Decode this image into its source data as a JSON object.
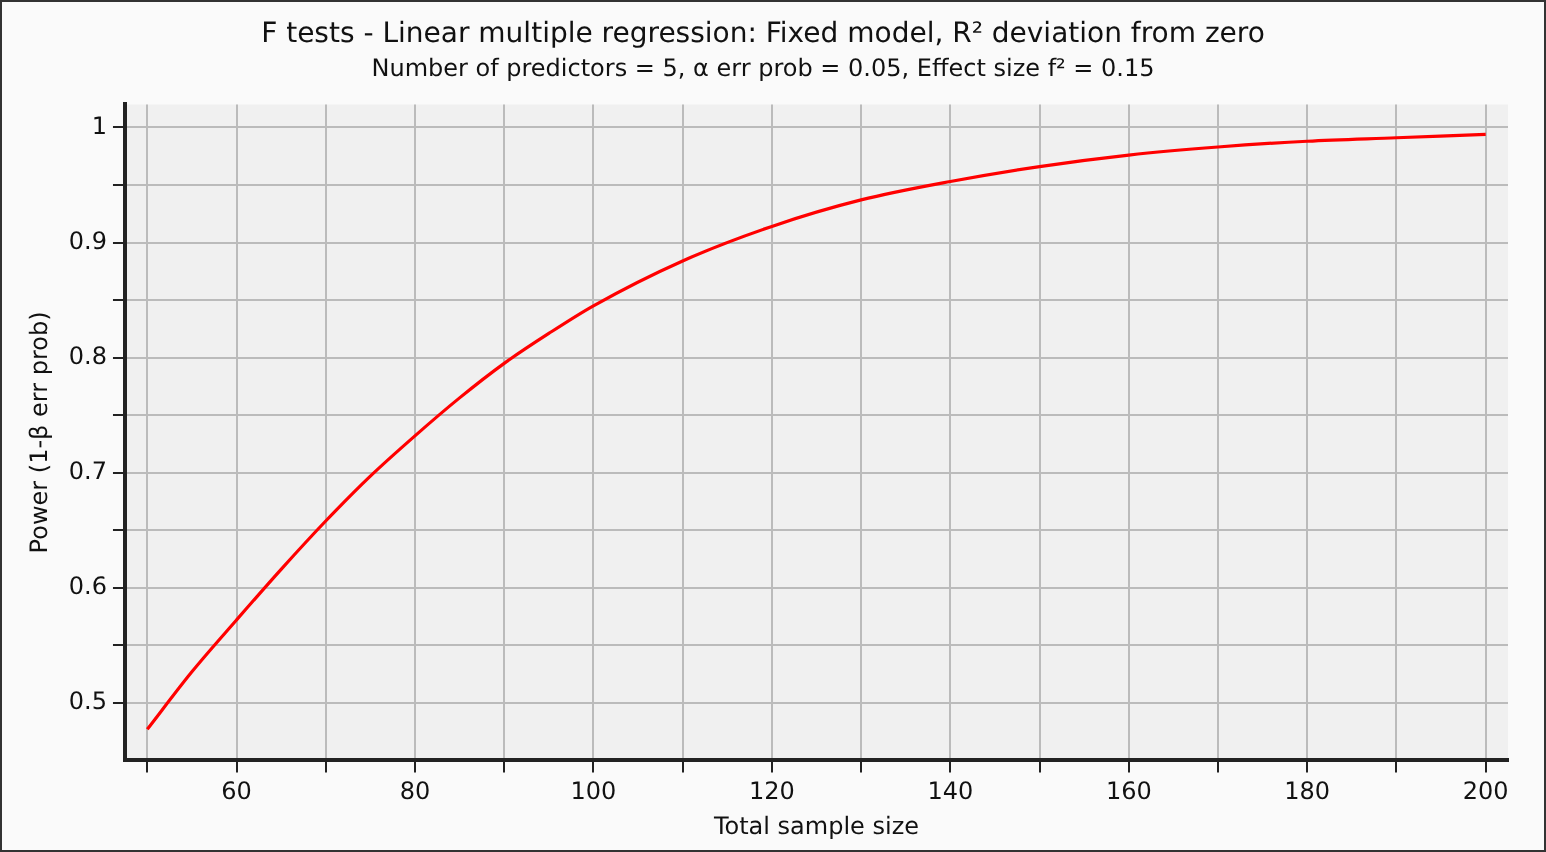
{
  "chart_data": {
    "type": "line",
    "title": "F tests - Linear multiple regression: Fixed model, R² deviation from zero",
    "subtitle": "Number of predictors = 5, α err prob = 0.05, Effect size f² = 0.15",
    "xlabel": "Total sample size",
    "ylabel": "Power (1-β err prob)",
    "x": [
      50,
      55,
      60,
      65,
      70,
      75,
      80,
      85,
      90,
      95,
      100,
      110,
      120,
      130,
      140,
      150,
      160,
      170,
      180,
      190,
      200
    ],
    "series": [
      {
        "color": "#ff0000",
        "values": [
          0.477,
          0.527,
          0.572,
          0.616,
          0.658,
          0.697,
          0.732,
          0.765,
          0.795,
          0.821,
          0.845,
          0.884,
          0.914,
          0.937,
          0.953,
          0.966,
          0.976,
          0.983,
          0.988,
          0.991,
          0.994
        ]
      }
    ],
    "xlim": [
      47.5,
      202.5
    ],
    "xticks": [
      {
        "value": 50,
        "label": null
      },
      60,
      {
        "value": 70,
        "label": null
      },
      80,
      {
        "value": 90,
        "label": null
      },
      100,
      {
        "value": 110,
        "label": null
      },
      120,
      {
        "value": 130,
        "label": null
      },
      140,
      {
        "value": 150,
        "label": null
      },
      160,
      {
        "value": 170,
        "label": null
      },
      180,
      {
        "value": 190,
        "label": null
      },
      200
    ],
    "ylim": [
      0.45,
      1.02
    ],
    "yticks": [
      0.5,
      {
        "value": 0.55,
        "label": null
      },
      0.6,
      {
        "value": 0.65,
        "label": null
      },
      0.7,
      {
        "value": 0.75,
        "label": null
      },
      0.8,
      {
        "value": 0.85,
        "label": null
      },
      0.9,
      {
        "value": 0.95,
        "label": null
      },
      1
    ],
    "grid": true,
    "marker": "none",
    "line_style": "solid",
    "legend": false
  }
}
